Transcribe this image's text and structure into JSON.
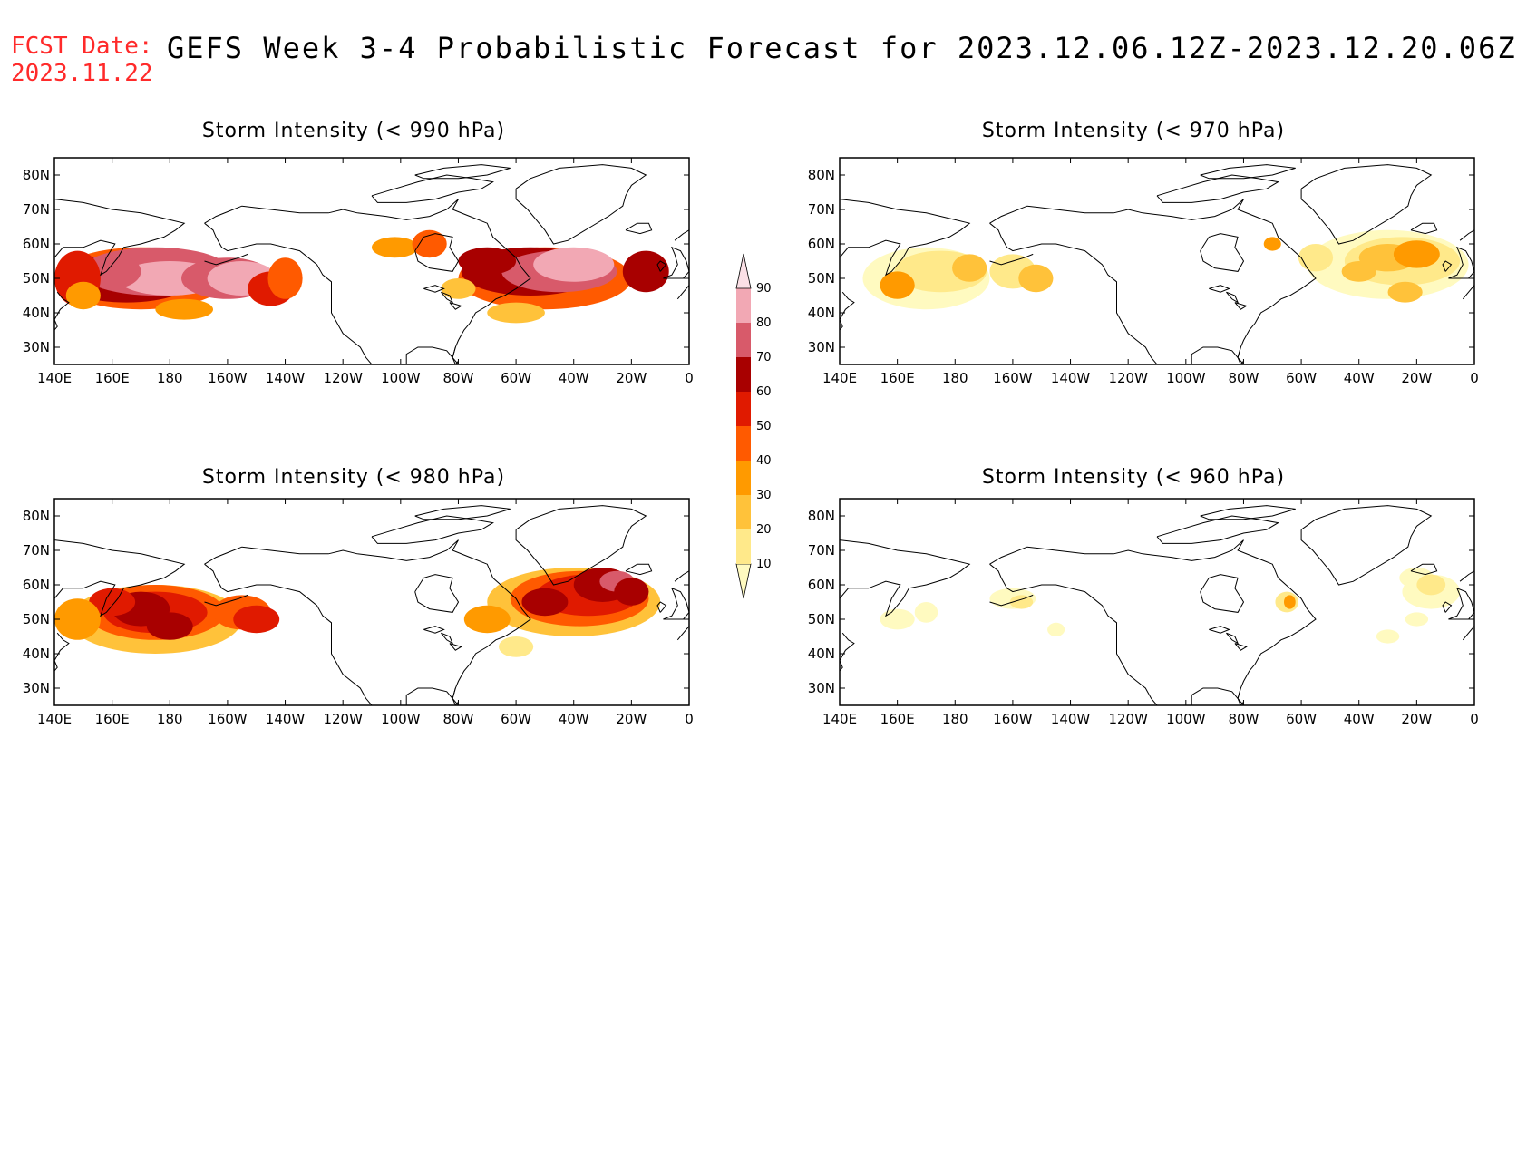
{
  "header": {
    "fcst_label": "FCST Date:",
    "fcst_date": "2023.11.22",
    "title": "GEFS Week 3-4 Probabilistic Forecast for 2023.12.06.12Z-2023.12.20.06Z"
  },
  "axes": {
    "lat_ticks": [
      "80N",
      "70N",
      "60N",
      "50N",
      "40N",
      "30N"
    ],
    "lon_ticks": [
      "140E",
      "160E",
      "180",
      "160W",
      "140W",
      "120W",
      "100W",
      "80W",
      "60W",
      "40W",
      "20W",
      "0"
    ]
  },
  "panels": [
    {
      "title": "Storm Intensity (< 990 hPa)",
      "id": "p990"
    },
    {
      "title": "Storm Intensity (< 970 hPa)",
      "id": "p970"
    },
    {
      "title": "Storm Intensity (< 980 hPa)",
      "id": "p980"
    },
    {
      "title": "Storm Intensity (< 960 hPa)",
      "id": "p960"
    }
  ],
  "colorbar": {
    "levels": [
      "10",
      "20",
      "30",
      "40",
      "50",
      "60",
      "70",
      "80",
      "90"
    ],
    "colors": [
      "#fffac0",
      "#ffe98a",
      "#ffc23a",
      "#ff9a00",
      "#ff5a00",
      "#e01a00",
      "#a80000",
      "#d85a6a",
      "#f2a8b4",
      "#fbe0e6"
    ]
  }
}
